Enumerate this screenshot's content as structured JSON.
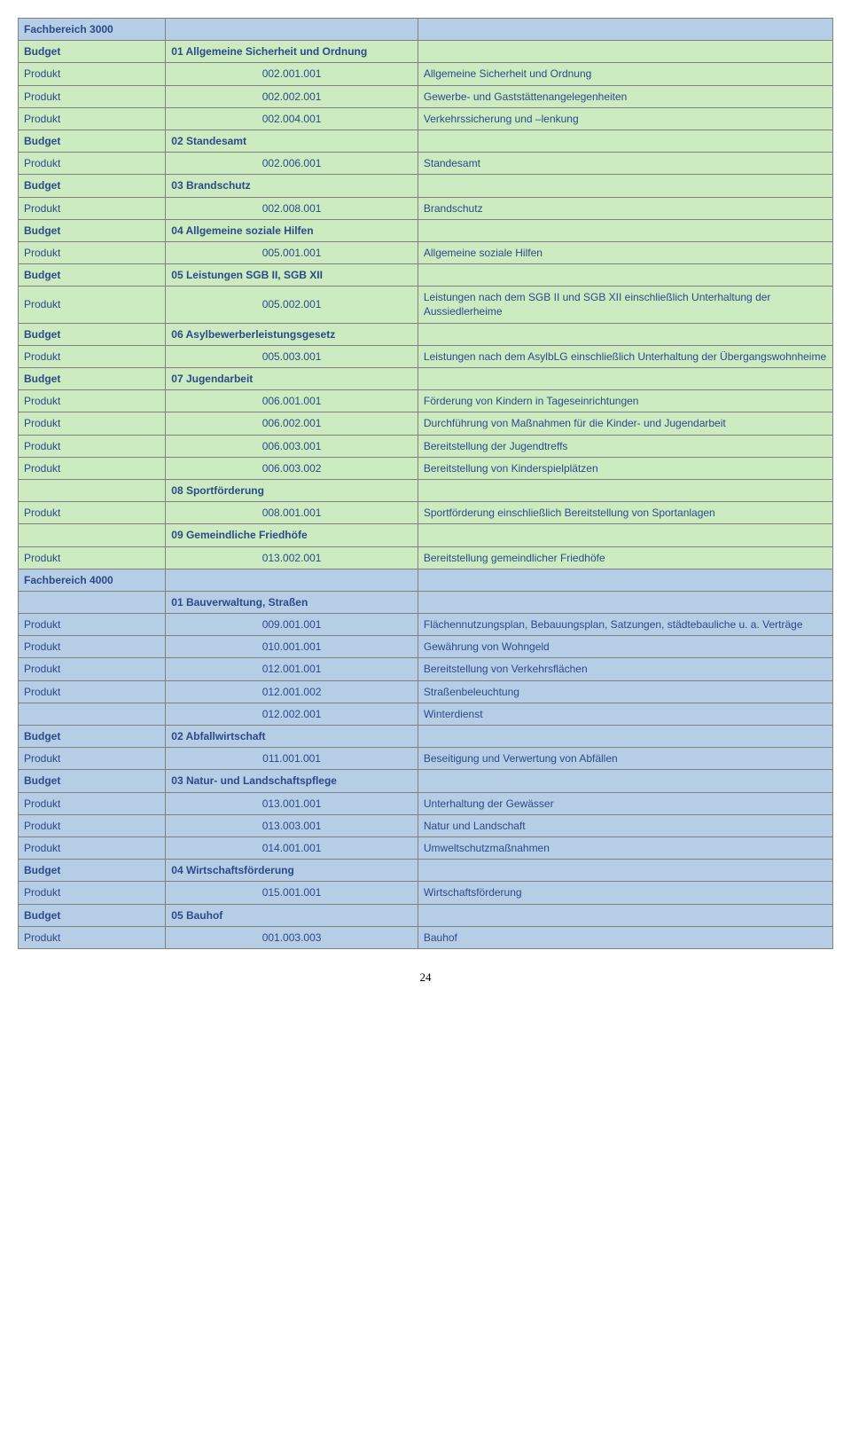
{
  "colors": {
    "blue_row": "#b6cde6",
    "green_row": "#cdebc1",
    "border": "#808080",
    "text": "#2a4a8a"
  },
  "typography": {
    "font_family": "Verdana",
    "base_fontsize": 12,
    "bold_weight": 700
  },
  "page_number": "24",
  "rows": [
    {
      "cls": "blue",
      "bold": true,
      "c0": "Fachbereich 3000",
      "c1": "",
      "c2": ""
    },
    {
      "cls": "green",
      "bold": true,
      "c0": "Budget",
      "c1": "01 Allgemeine Sicherheit und Ordnung",
      "c2": ""
    },
    {
      "cls": "green",
      "bold": false,
      "c0": "Produkt",
      "c1": "002.001.001",
      "c2": "Allgemeine Sicherheit und Ordnung"
    },
    {
      "cls": "green",
      "bold": false,
      "c0": "Produkt",
      "c1": "002.002.001",
      "c2": "Gewerbe- und Gaststättenangelegenheiten"
    },
    {
      "cls": "green",
      "bold": false,
      "c0": "Produkt",
      "c1": "002.004.001",
      "c2": "Verkehrssicherung und –lenkung"
    },
    {
      "cls": "green",
      "bold": true,
      "c0": "Budget",
      "c1": "02 Standesamt",
      "c2": ""
    },
    {
      "cls": "green",
      "bold": false,
      "c0": "Produkt",
      "c1": "002.006.001",
      "c2": "Standesamt"
    },
    {
      "cls": "green",
      "bold": true,
      "c0": "Budget",
      "c1": "03 Brandschutz",
      "c2": ""
    },
    {
      "cls": "green",
      "bold": false,
      "c0": "Produkt",
      "c1": "002.008.001",
      "c2": "Brandschutz"
    },
    {
      "cls": "green",
      "bold": true,
      "c0": "Budget",
      "c1": "04 Allgemeine soziale Hilfen",
      "c2": ""
    },
    {
      "cls": "green",
      "bold": false,
      "c0": "Produkt",
      "c1": "005.001.001",
      "c2": "Allgemeine soziale Hilfen"
    },
    {
      "cls": "green",
      "bold": true,
      "c0": "Budget",
      "c1": "05 Leistungen SGB II, SGB XII",
      "c2": ""
    },
    {
      "cls": "green",
      "bold": false,
      "c0": "Produkt",
      "c1": "005.002.001",
      "c2": "Leistungen nach dem SGB II und SGB XII einschließlich Unterhaltung der Aussiedlerheime"
    },
    {
      "cls": "green",
      "bold": true,
      "c0": "Budget",
      "c1": "06 Asylbewerberleistungsgesetz",
      "c2": ""
    },
    {
      "cls": "green",
      "bold": false,
      "c0": "Produkt",
      "c1": "005.003.001",
      "c2": "Leistungen nach dem AsylbLG einschließlich Unterhaltung der Übergangswohnheime"
    },
    {
      "cls": "green",
      "bold": true,
      "c0": "Budget",
      "c1": "07 Jugendarbeit",
      "c2": ""
    },
    {
      "cls": "green",
      "bold": false,
      "c0": "Produkt",
      "c1": "006.001.001",
      "c2": "Förderung von Kindern in Tageseinrichtungen"
    },
    {
      "cls": "green",
      "bold": false,
      "c0": "Produkt",
      "c1": "006.002.001",
      "c2": "Durchführung von Maßnahmen für die Kinder- und Jugendarbeit"
    },
    {
      "cls": "green",
      "bold": false,
      "c0": "Produkt",
      "c1": "006.003.001",
      "c2": "Bereitstellung der Jugendtreffs"
    },
    {
      "cls": "green",
      "bold": false,
      "c0": "Produkt",
      "c1": "006.003.002",
      "c2": "Bereitstellung von Kinderspielplätzen"
    },
    {
      "cls": "green",
      "bold": true,
      "c0": "",
      "c1": "08 Sportförderung",
      "c2": ""
    },
    {
      "cls": "green",
      "bold": false,
      "c0": "Produkt",
      "c1": "008.001.001",
      "c2": "Sportförderung einschließlich Bereitstellung von Sportanlagen"
    },
    {
      "cls": "green",
      "bold": true,
      "c0": "",
      "c1": "09 Gemeindliche Friedhöfe",
      "c2": ""
    },
    {
      "cls": "green",
      "bold": false,
      "c0": "Produkt",
      "c1": "013.002.001",
      "c2": "Bereitstellung gemeindlicher Friedhöfe"
    },
    {
      "cls": "blue",
      "bold": true,
      "c0": "Fachbereich 4000",
      "c1": "",
      "c2": ""
    },
    {
      "cls": "blue",
      "bold": true,
      "c0": "",
      "c1": "01 Bauverwaltung, Straßen",
      "c2": ""
    },
    {
      "cls": "blue",
      "bold": false,
      "c0": "Produkt",
      "c1": "009.001.001",
      "c2": "Flächennutzungsplan, Bebauungsplan, Satzungen, städtebauliche u. a. Verträge"
    },
    {
      "cls": "blue",
      "bold": false,
      "c0": "Produkt",
      "c1": "010.001.001",
      "c2": "Gewährung von Wohngeld"
    },
    {
      "cls": "blue",
      "bold": false,
      "c0": "Produkt",
      "c1": "012.001.001",
      "c2": "Bereitstellung von Verkehrsflächen"
    },
    {
      "cls": "blue",
      "bold": false,
      "c0": "Produkt",
      "c1": "012.001.002",
      "c2": "Straßenbeleuchtung"
    },
    {
      "cls": "blue",
      "bold": false,
      "c0": "",
      "c1": "012.002.001",
      "c2": "Winterdienst"
    },
    {
      "cls": "blue",
      "bold": true,
      "c0": "Budget",
      "c1": "02 Abfallwirtschaft",
      "c2": ""
    },
    {
      "cls": "blue",
      "bold": false,
      "c0": "Produkt",
      "c1": "011.001.001",
      "c2": "Beseitigung und Verwertung von Abfällen"
    },
    {
      "cls": "blue",
      "bold": true,
      "c0": "Budget",
      "c1": "03 Natur- und Landschaftspflege",
      "c2": ""
    },
    {
      "cls": "blue",
      "bold": false,
      "c0": "Produkt",
      "c1": "013.001.001",
      "c2": "Unterhaltung der Gewässer"
    },
    {
      "cls": "blue",
      "bold": false,
      "c0": "Produkt",
      "c1": "013.003.001",
      "c2": "Natur und Landschaft"
    },
    {
      "cls": "blue",
      "bold": false,
      "c0": "Produkt",
      "c1": "014.001.001",
      "c2": "Umweltschutzmaßnahmen"
    },
    {
      "cls": "blue",
      "bold": true,
      "c0": "Budget",
      "c1": "04 Wirtschaftsförderung",
      "c2": ""
    },
    {
      "cls": "blue",
      "bold": false,
      "c0": "Produkt",
      "c1": "015.001.001",
      "c2": "Wirtschaftsförderung"
    },
    {
      "cls": "blue",
      "bold": true,
      "c0": "Budget",
      "c1": "05 Bauhof",
      "c2": ""
    },
    {
      "cls": "blue",
      "bold": false,
      "c0": "Produkt",
      "c1": "001.003.003",
      "c2": "Bauhof"
    }
  ]
}
